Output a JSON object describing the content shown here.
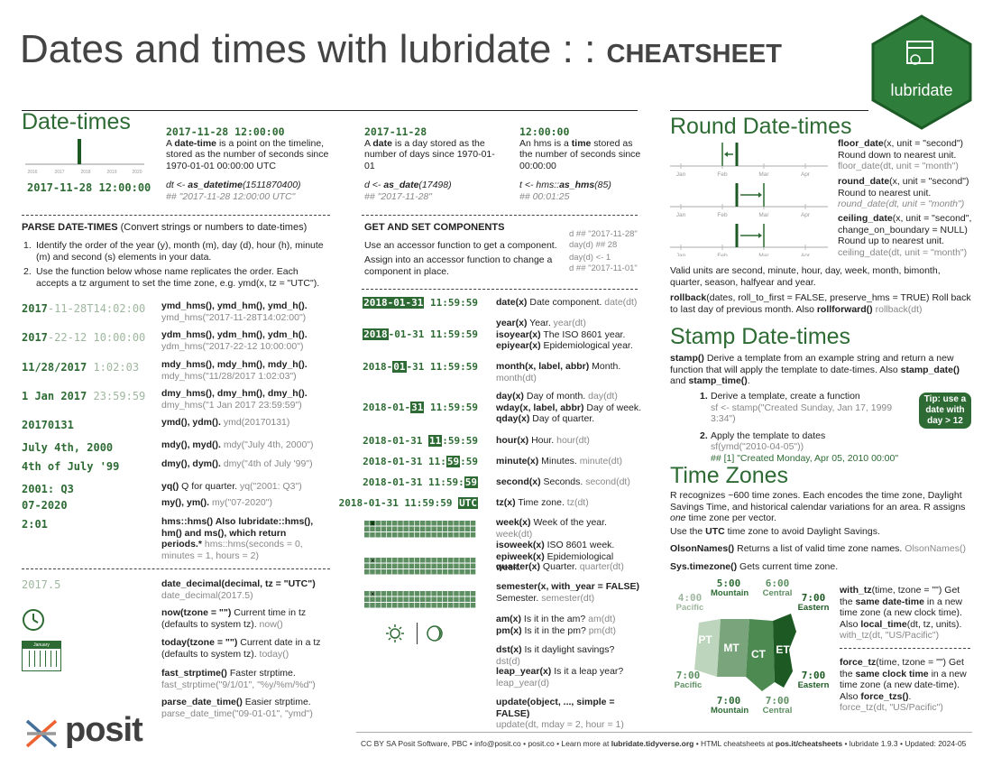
{
  "header": {
    "title": "Dates and times with lubridate : :",
    "cheatsheet": "CHEATSHEET",
    "logo_text": "lubridate"
  },
  "datetimes": {
    "title": "Date-times",
    "timeline_labels": [
      "2016",
      "2017",
      "2018",
      "2019",
      "2020"
    ],
    "dt_value": "2017-11-28 12:00:00",
    "dt_head": "2017-11-28 12:00:00",
    "dt_desc_pre": "A ",
    "dt_desc_b": "date-time",
    "dt_desc_post": " is a point on the timeline, stored as the number of seconds since 1970-01-01 00:00:00 UTC",
    "dt_code": "dt <- ",
    "dt_code_fn": "as_datetime",
    "dt_code_arg": "(1511870400)",
    "dt_result": "## \"2017-11-28 12:00:00 UTC\"",
    "date_head": "2017-11-28",
    "date_desc_pre": "A ",
    "date_desc_b": "date",
    "date_desc_post": " is a day stored as the number of days since 1970-01-01",
    "date_code": "d <- ",
    "date_code_fn": "as_date",
    "date_code_arg": "(17498)",
    "date_result": "## \"2017-11-28\"",
    "hms_head": "12:00:00",
    "hms_desc_pre": "An hms is a ",
    "hms_desc_b": "time",
    "hms_desc_post": " stored as the number of seconds since 00:00:00",
    "hms_code": "t <- hms::",
    "hms_code_fn": "as_hms",
    "hms_code_arg": "(85)",
    "hms_result": "## 00:01:25"
  },
  "parse": {
    "title": "PARSE DATE-TIMES",
    "subtitle": " (Convert strings or numbers to date-times)",
    "step1": "Identify the order of the year (y), month (m), day (d), hour (h), minute (m) and second (s) elements in your data.",
    "step2": "Use the function below whose name replicates the order. Each accepts a tz argument to set the time zone, e.g. ymd(x, tz = \"UTC\").",
    "rows": [
      {
        "ex_a": "2017",
        "ex_b": "-11-28T14:02:00",
        "fn": "ymd_hms(), ymd_hm(), ymd_h().",
        "sub": "ymd_hms(\"2017-11-28T14:02:00\")"
      },
      {
        "ex_a": "2017",
        "ex_b": "-22-12 10:00:00",
        "fn": "ydm_hms(), ydm_hm(), ydm_h().",
        "sub": "ydm_hms(\"2017-22-12 10:00:00\")"
      },
      {
        "ex_a": "11/28/2017",
        "ex_b": " 1:02:03",
        "fn": "mdy_hms(), mdy_hm(), mdy_h().",
        "sub": "mdy_hms(\"11/28/2017 1:02:03\")"
      },
      {
        "ex_a": "1 Jan 2017",
        "ex_b": " 23:59:59",
        "fn": "dmy_hms(), dmy_hm(), dmy_h().",
        "sub": "dmy_hms(\"1 Jan 2017 23:59:59\")"
      },
      {
        "ex_a": "20170131",
        "ex_b": "",
        "fn": "ymd(), ydm().",
        "sub": "ymd(20170131)"
      },
      {
        "ex_a": "July 4th, 2000",
        "ex_b": "",
        "fn": "mdy(), myd().",
        "sub": "mdy(\"July 4th, 2000\")"
      },
      {
        "ex_a": "4th of July '99",
        "ex_b": "",
        "fn": "dmy(), dym().",
        "sub": "dmy(\"4th of July '99\")"
      },
      {
        "ex_a": "2001: Q3",
        "ex_b": "",
        "fn": "yq()",
        "fn_post": " Q for quarter.",
        "sub": "yq(\"2001: Q3\")"
      },
      {
        "ex_a": "07-2020",
        "ex_b": "",
        "fn": "my(), ym().",
        "sub": "my(\"07-2020\")"
      },
      {
        "ex_a": "2:01",
        "ex_b": "",
        "fn": "hms::hms() Also lubridate::hms(), hm() and ms(), which return periods.*",
        "sub": "hms::hms(seconds = 0, minutes = 1, hours = 2)"
      }
    ],
    "decimal_ex": "2017.5",
    "decimal_fn": "date_decimal(decimal, tz = \"UTC\")",
    "decimal_sub": "date_decimal(2017.5)",
    "now_fn": "now(tzone = \"\")",
    "now_desc": " Current time in tz (defaults to system tz).",
    "now_sub": " now()",
    "today_fn": "today(tzone = \"\")",
    "today_desc": " Current date in a tz (defaults to system tz).",
    "today_sub": " today()",
    "calendar_label": "January",
    "fast_fn": "fast_strptime()",
    "fast_desc": " Faster strptime.",
    "fast_sub": "fast_strptime(\"9/1/01\", \"%y/%m/%d\")",
    "pdt_fn": "parse_date_time()",
    "pdt_desc": " Easier strptime.",
    "pdt_sub": "parse_date_time(\"09-01-01\", \"ymd\")"
  },
  "getset": {
    "title": "GET AND SET COMPONENTS",
    "use_text": "Use an accessor function to get a component.",
    "assign_text": "Assign into an accessor function to change a component in place.",
    "code1": "d ## \"2017-11-28\"",
    "code2": "day(d) ## 28",
    "code3": "day(d) <- 1",
    "code4": "d ## \"2017-11-01\"",
    "rows": [
      {
        "pre": "",
        "chip": "2018-01-31",
        "post": " 11:59:59",
        "fn": "date(x)",
        "desc": " Date component.",
        "sub": " date(dt)"
      },
      {
        "pre": "",
        "chip": "2018",
        "post": "-01-31 11:59:59",
        "fn": "year(x)",
        "desc": " Year.",
        "sub": " year(dt)",
        "fn2": "isoyear(x)",
        "desc2": " The ISO 8601 year.",
        "fn3": "epiyear(x)",
        "desc3": " Epidemiological year."
      },
      {
        "pre": "2018-",
        "chip": "01",
        "post": "-31 11:59:59",
        "fn": "month(x, label, abbr)",
        "desc": " Month.",
        "sub": "month(dt)"
      },
      {
        "pre": "2018-01-",
        "chip": "31",
        "post": " 11:59:59",
        "fn": "day(x)",
        "desc": " Day of month.",
        "sub": " day(dt)",
        "fn2": "wday(x, label, abbr)",
        "desc2": " Day of week.",
        "fn3": "qday(x)",
        "desc3": " Day of quarter."
      },
      {
        "pre": "2018-01-31 ",
        "chip": "11",
        "post": ":59:59",
        "fn": "hour(x)",
        "desc": " Hour.",
        "sub": " hour(dt)"
      },
      {
        "pre": "2018-01-31 11:",
        "chip": "59",
        "post": ":59",
        "fn": "minute(x)",
        "desc": " Minutes.",
        "sub": " minute(dt)"
      },
      {
        "pre": "2018-01-31 11:59:",
        "chip": "59",
        "post": "",
        "fn": "second(x)",
        "desc": " Seconds.",
        "sub": " second(dt)"
      },
      {
        "pre": "2018-01-31 11:59:59 ",
        "chip": "UTC",
        "post": "",
        "fn": "tz(x)",
        "desc": " Time zone.",
        "sub": " tz(dt)"
      }
    ],
    "week_fn": "week(x)",
    "week_desc": " Week of the year.",
    "week_sub": " week(dt)",
    "isoweek_fn": "isoweek(x)",
    "isoweek_desc": " ISO 8601 week.",
    "epiweek_fn": "epiweek(x)",
    "epiweek_desc": " Epidemiological week.",
    "quarter_fn": "quarter(x)",
    "quarter_desc": " Quarter.",
    "quarter_sub": " quarter(dt)",
    "semester_fn": "semester(x, with_year = FALSE)",
    "semester_desc": "Semester.",
    "semester_sub": " semester(dt)",
    "am_fn": "am(x)",
    "am_desc": " Is it in the am?",
    "am_sub": " am(dt)",
    "pm_fn": "pm(x)",
    "pm_desc": " Is it in the pm?",
    "pm_sub": " pm(dt)",
    "dst_fn": "dst(x)",
    "dst_desc": " Is it daylight savings?",
    "dst_sub": " dst(d)",
    "leap_fn": "leap_year(x)",
    "leap_desc": " Is it a leap year?",
    "leap_sub": "leap_year(d)",
    "update_fn": "update(object, ..., simple = FALSE)",
    "update_sub": "update(dt, mday = 2, hour = 1)"
  },
  "round": {
    "title": "Round Date-times",
    "axis_labels": [
      "Jan",
      "Feb",
      "Mar",
      "Apr"
    ],
    "floor_fn": "floor_date",
    "floor_args": "(x, unit = \"second\")",
    "floor_desc": "Round down to nearest unit.",
    "floor_sub": "floor_date(dt, unit = \"month\")",
    "round_fn": "round_date",
    "round_args": "(x, unit = \"second\")",
    "round_desc": "Round to nearest unit.",
    "round_sub": "round_date(dt, unit = \"month\")",
    "ceil_fn": "ceiling_date",
    "ceil_args": "(x, unit = \"second\", change_on_boundary = NULL)",
    "ceil_desc": "Round up to nearest unit.",
    "ceil_sub": "ceiling_date(dt, unit = \"month\")",
    "units": "Valid units are second, minute, hour, day, week, month, bimonth, quarter, season, halfyear and year.",
    "rollback_fn": "rollback",
    "rollback_args": "(dates, roll_to_first = FALSE, preserve_hms = TRUE)",
    "rollback_desc": " Roll back to last day of previous month. Also ",
    "rollforward_fn": "rollforward()",
    "rollback_sub": " rollback(dt)"
  },
  "stamp": {
    "title": "Stamp Date-times",
    "stamp_fn": "stamp()",
    "stamp_desc": " Derive a template from an example string and return a new function that will apply the template to date-times. Also ",
    "stamp_date": "stamp_date()",
    "and": " and ",
    "stamp_time": "stamp_time()",
    "end": ".",
    "step1": "Derive a template, create a function",
    "step1_code": "sf <- stamp(\"Created Sunday, Jan 17, 1999 3:34\")",
    "step2": "Apply the template to dates",
    "step2_code": "sf(ymd(\"2010-04-05\"))",
    "step2_result": "## [1] \"Created Monday, Apr 05, 2010 00:00\"",
    "tip": "Tip: use a date with day > 12"
  },
  "tz": {
    "title": "Time Zones",
    "desc_pre": "R recognizes ~600 time zones. Each encodes the time zone, Daylight Savings Time, and historical calendar variations for an area. R assigns ",
    "desc_it": "one",
    "desc_post": " time zone per vector.",
    "utc_pre": "Use the ",
    "utc_b": "UTC",
    "utc_post": " time zone to avoid Daylight Savings.",
    "olson_fn": "OlsonNames()",
    "olson_desc": " Returns a list of valid time zone names.",
    "olson_sub": " OlsonNames()",
    "systz_fn": "Sys.timezone()",
    "systz_desc": " Gets current time zone.",
    "map_top": [
      {
        "time": "4:00",
        "zone": "Pacific"
      },
      {
        "time": "5:00",
        "zone": "Mountain"
      },
      {
        "time": "6:00",
        "zone": "Central"
      },
      {
        "time": "7:00",
        "zone": "Eastern"
      }
    ],
    "map_bottom": [
      {
        "time": "7:00",
        "zone": "Pacific"
      },
      {
        "time": "7:00",
        "zone": "Mountain"
      },
      {
        "time": "7:00",
        "zone": "Central"
      },
      {
        "time": "7:00",
        "zone": "Eastern"
      }
    ],
    "map_zones": [
      "PT",
      "MT",
      "CT",
      "ET"
    ],
    "withtz_fn": "with_tz",
    "withtz_args": "(time, tzone = \"\")",
    "withtz_desc1": " Get the ",
    "withtz_b": "same date-time",
    "withtz_desc2": " in a new time zone (a new clock time). Also ",
    "localtime_fn": "local_time",
    "localtime_args": "(dt, tz, units).",
    "withtz_sub": " with_tz(dt, \"US/Pacific\")",
    "forcetz_fn": "force_tz",
    "forcetz_args": "(time, tzone = \"\")",
    "forcetz_desc1": " Get the ",
    "forcetz_b": "same clock time",
    "forcetz_desc2": " in a new time zone (a new date-time). Also ",
    "forcetzs_fn": "force_tzs()",
    "forcetzs_end": ".",
    "forcetz_sub": "force_tz(dt, \"US/Pacific\")"
  },
  "footer": {
    "posit": "posit",
    "text_pre": "CC BY SA Posit Software, PBC  •  info@posit.co  •  posit.co  •  Learn more at ",
    "learn_link": "lubridate.tidyverse.org",
    "text_mid": "  •  HTML cheatsheets at ",
    "html_link": "pos.it/cheatsheets",
    "text_post": "  •  lubridate  1.9.3  •  Updated:  2024-05"
  },
  "colors": {
    "accent": "#2e6b34",
    "light": "#9fb79f"
  }
}
